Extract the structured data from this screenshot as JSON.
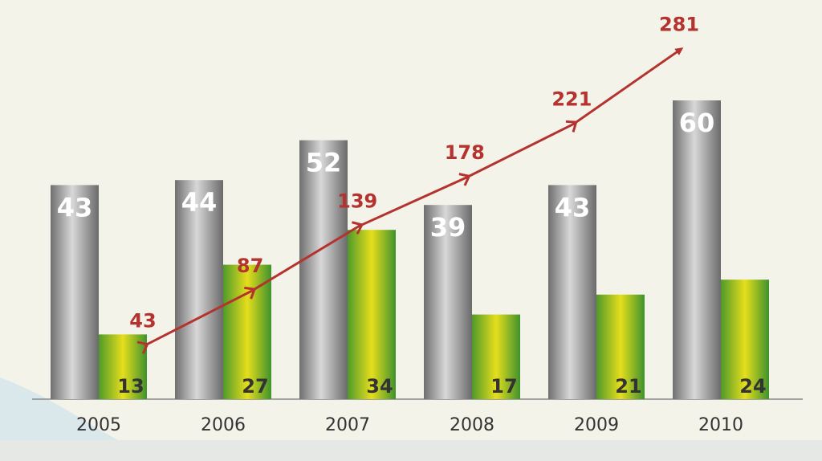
{
  "chart_data": {
    "type": "bar",
    "categories": [
      "2005",
      "2006",
      "2007",
      "2008",
      "2009",
      "2010"
    ],
    "series": [
      {
        "color": "#8a8a8a",
        "values": [
          43,
          44,
          52,
          39,
          43,
          60
        ]
      },
      {
        "color": "#c8c81a",
        "values": [
          13,
          27,
          34,
          17,
          21,
          24
        ]
      },
      {
        "type": "line",
        "axis": "y2",
        "color": "#b5332e",
        "values": [
          43,
          87,
          139,
          178,
          221,
          281
        ]
      }
    ],
    "ylim": [
      0,
      65
    ],
    "y2lim": [
      0,
      300
    ]
  }
}
